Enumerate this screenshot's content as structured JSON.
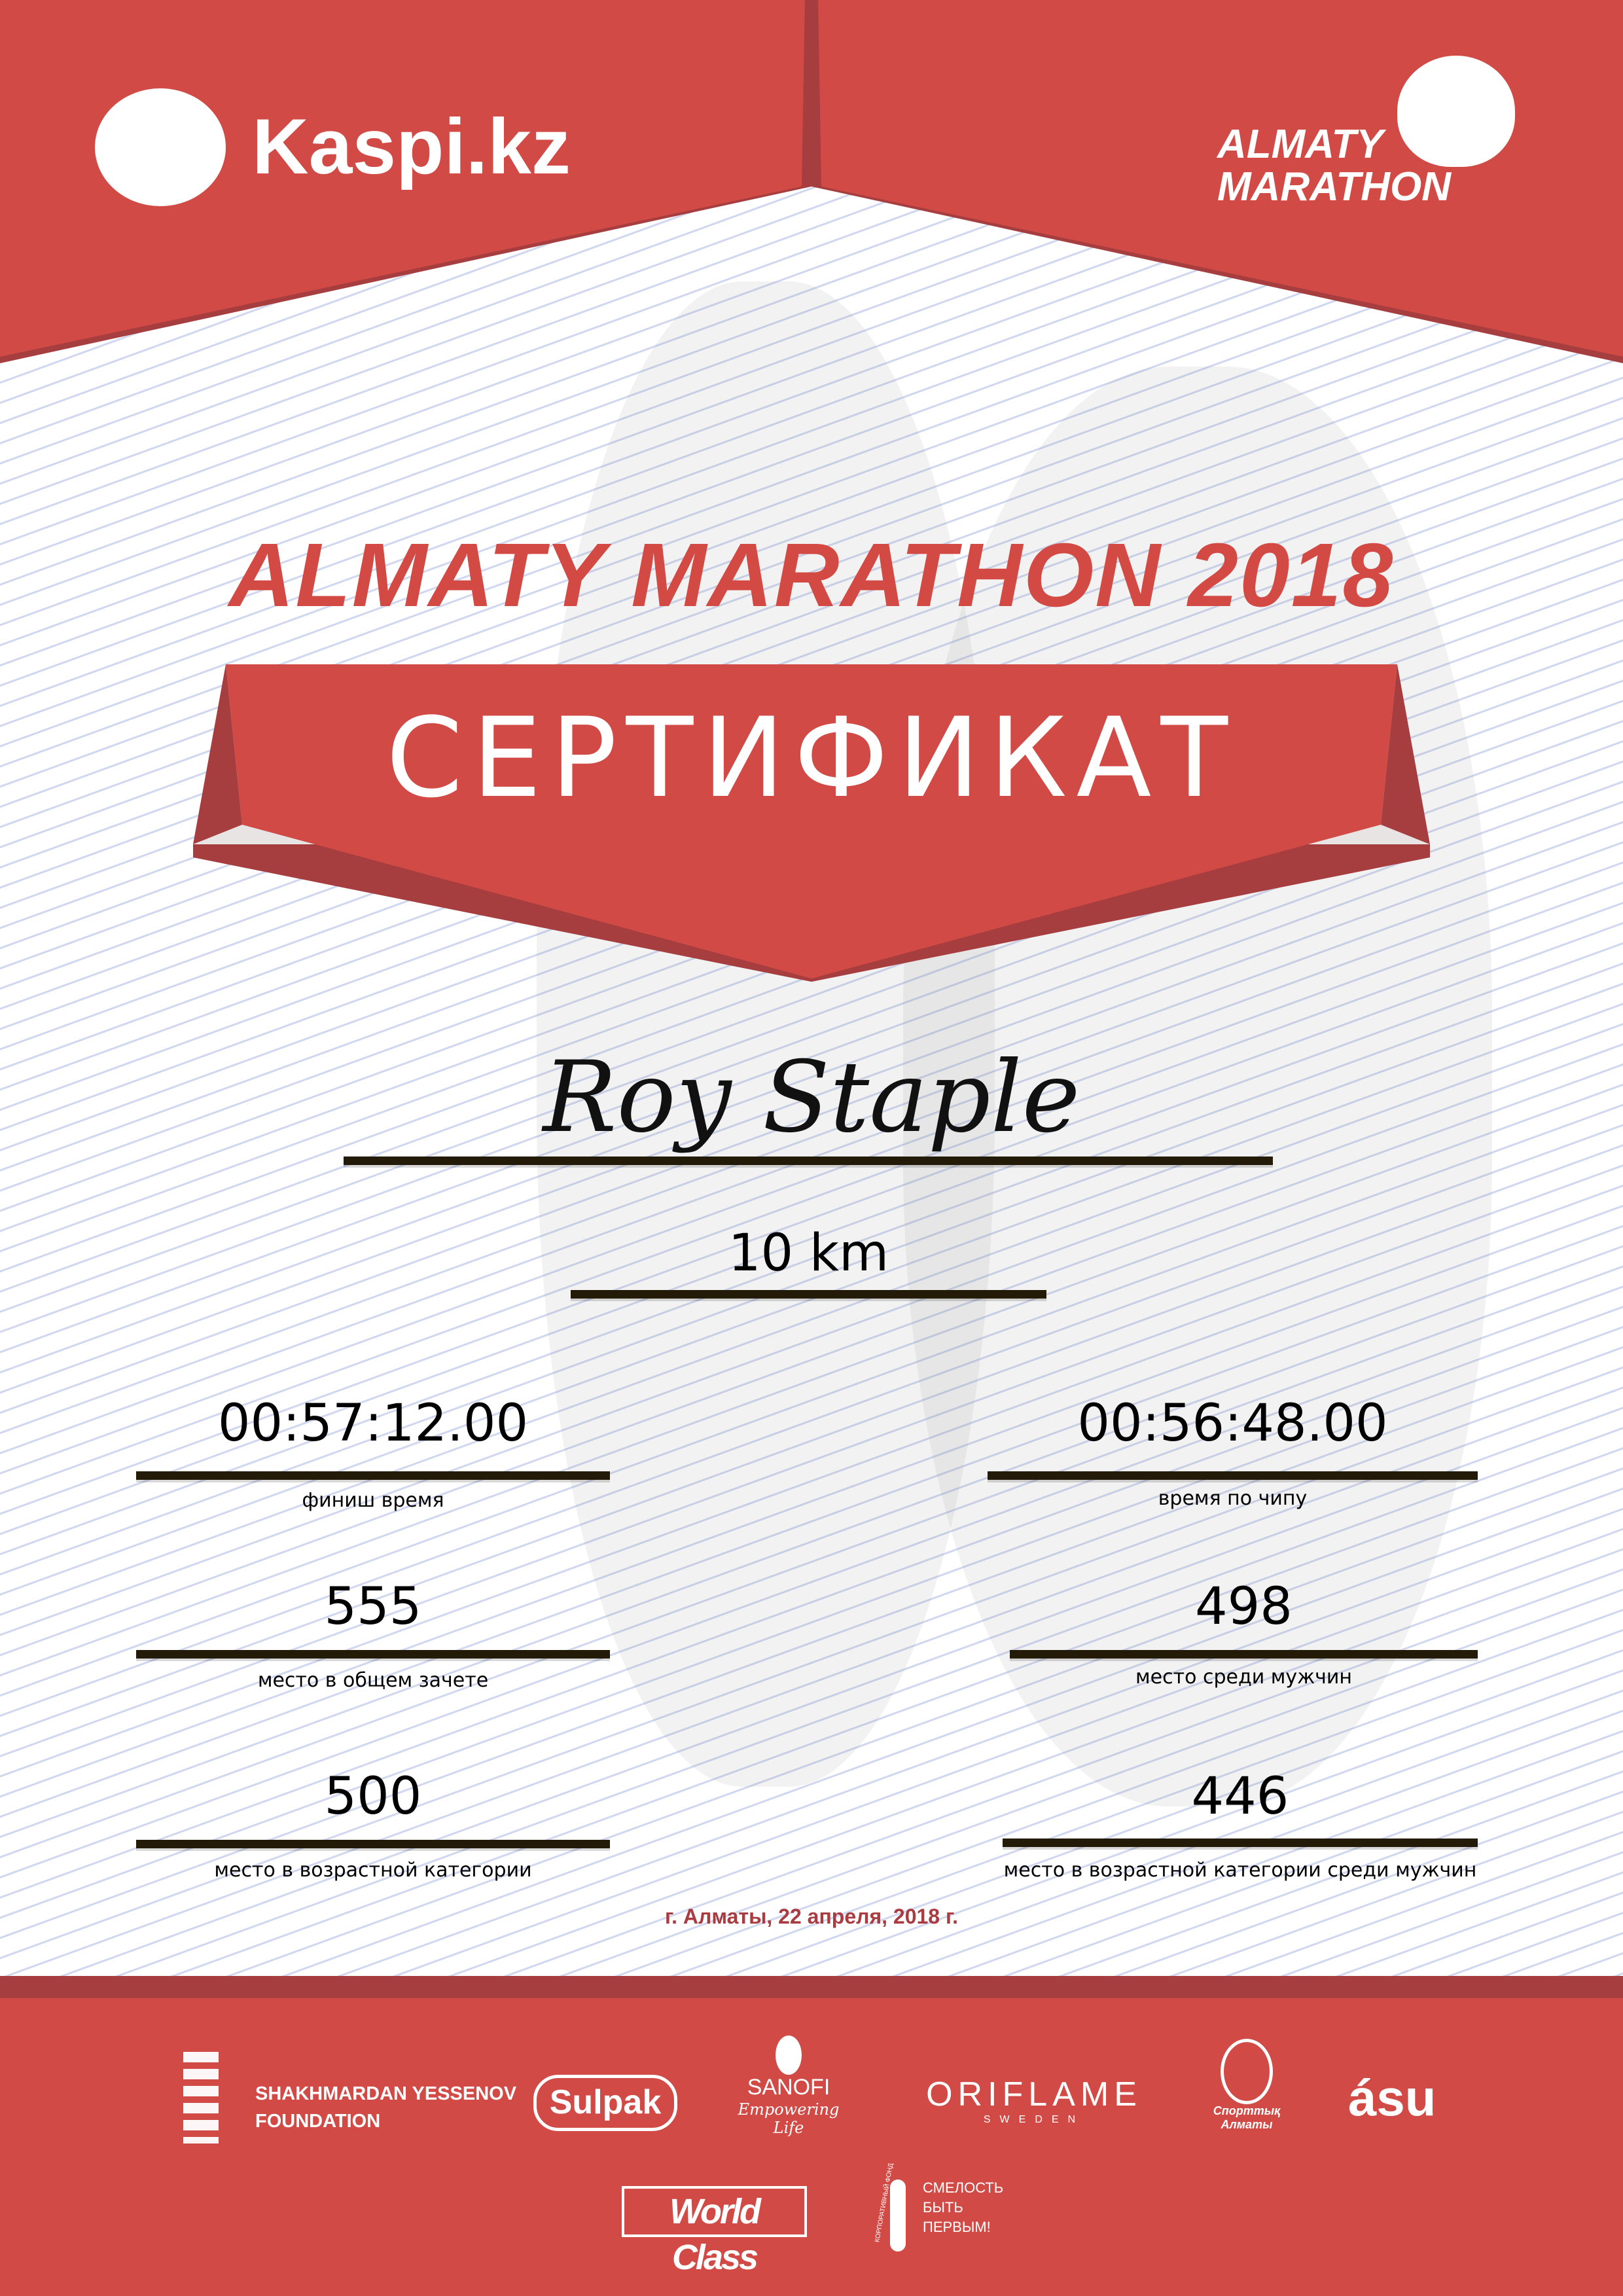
{
  "header": {
    "sponsor_logo": "Kaspi.kz",
    "event_logo_line1": "ALMATY",
    "event_logo_line2": "MARATHON"
  },
  "title": "ALMATY MARATHON 2018",
  "banner": "СЕРТИФИКАТ",
  "participant_name": "Roy Staple",
  "distance": "10 km",
  "results": {
    "finish_time": {
      "value": "00:57:12.00",
      "label": "финиш время"
    },
    "chip_time": {
      "value": "00:56:48.00",
      "label": "время по чипу"
    },
    "overall_place": {
      "value": "555",
      "label": "место в общем зачете"
    },
    "gender_place": {
      "value": "498",
      "label": "место среди мужчин"
    },
    "age_place": {
      "value": "500",
      "label": "место в возрастной категории"
    },
    "age_gender_place": {
      "value": "446",
      "label": "место в возрастной категории среди мужчин"
    }
  },
  "date": "г. Алматы, 22 апреля, 2018 г.",
  "sponsors": {
    "yessenov_line1": "SHAKHMARDAN YESSENOV",
    "yessenov_line2": "FOUNDATION",
    "sulpak": "Sulpak",
    "sanofi": "SANOFI",
    "sanofi_tagline": "Empowering Life",
    "oriflame": "ORIFLAME",
    "oriflame_sub": "SWEDEN",
    "sport_almaty": "Спорттық Алматы",
    "asu": "ásu",
    "worldclass": "World Class",
    "fund_line1": "СМЕЛОСТЬ",
    "fund_line2": "БЫТЬ",
    "fund_line3": "ПЕРВЫМ!",
    "fund_arc": "КОРПОРАТИВНЫЙ ФОНД"
  },
  "colors": {
    "primary_red": "#d24a45",
    "dark_red": "#a63d3f",
    "date_red": "#a83c40"
  }
}
